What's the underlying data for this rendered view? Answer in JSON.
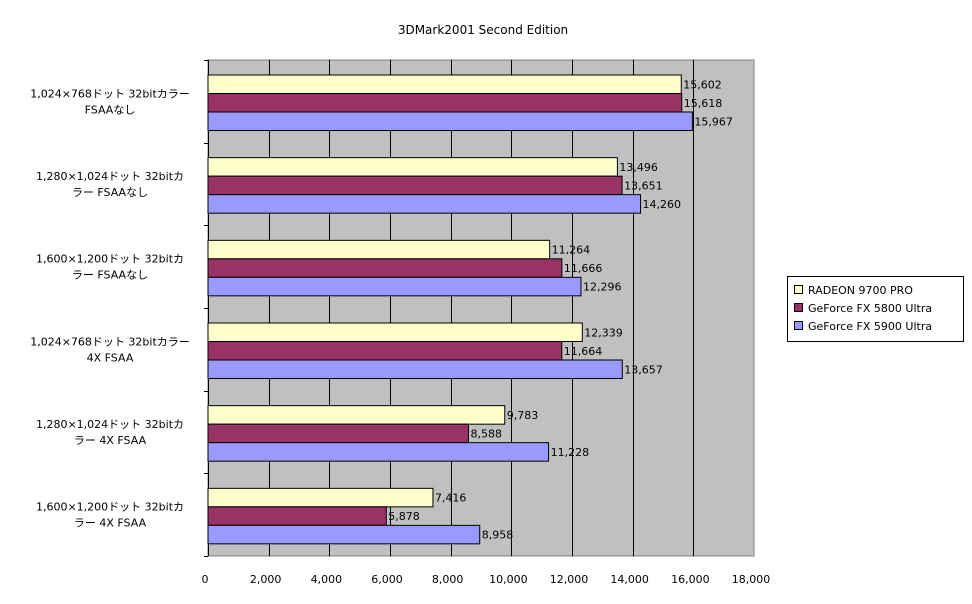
{
  "colors": {
    "plot_background": "#c0c0c0",
    "gridline": "#000000",
    "series": [
      "#ffffcc",
      "#993366",
      "#9999ff"
    ]
  },
  "chart_data": {
    "type": "bar",
    "orientation": "horizontal",
    "title": "3DMark2001 Second Edition",
    "xlabel": "",
    "ylabel": "",
    "xlim": [
      0,
      18000
    ],
    "x_ticks": [
      "0",
      "2,000",
      "4,000",
      "6,000",
      "8,000",
      "10,000",
      "12,000",
      "14,000",
      "16,000",
      "18,000"
    ],
    "grid": true,
    "legend_position": "right",
    "categories": [
      [
        "1,024×768ドット 32bitカラー",
        "FSAAなし"
      ],
      [
        "1,280×1,024ドット 32bitカ",
        "ラー FSAAなし"
      ],
      [
        "1,600×1,200ドット 32bitカ",
        "ラー FSAAなし"
      ],
      [
        "1,024×768ドット 32bitカラー",
        "4X FSAA"
      ],
      [
        "1,280×1,024ドット 32bitカ",
        "ラー 4X FSAA"
      ],
      [
        "1,600×1,200ドット 32bitカ",
        "ラー 4X FSAA"
      ]
    ],
    "series": [
      {
        "name": "RADEON 9700 PRO",
        "values": [
          15602,
          13496,
          11264,
          12339,
          9783,
          7416
        ],
        "labels": [
          "15,602",
          "13,496",
          "11,264",
          "12,339",
          "9,783",
          "7,416"
        ]
      },
      {
        "name": "GeForce FX 5800 Ultra",
        "values": [
          15618,
          13651,
          11666,
          11664,
          8588,
          5878
        ],
        "labels": [
          "15,618",
          "13,651",
          "11,666",
          "11,664",
          "8,588",
          "5,878"
        ]
      },
      {
        "name": "GeForce FX 5900 Ultra",
        "values": [
          15967,
          14260,
          12296,
          13657,
          11228,
          8958
        ],
        "labels": [
          "15,967",
          "14,260",
          "12,296",
          "13,657",
          "11,228",
          "8,958"
        ]
      }
    ]
  }
}
